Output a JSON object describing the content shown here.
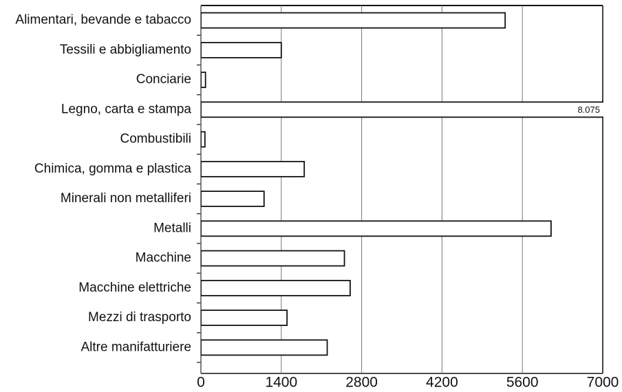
{
  "chart_data": {
    "type": "bar",
    "orientation": "horizontal",
    "categories": [
      "Alimentari, bevande e tabacco",
      "Tessili e abbigliamento",
      "Conciarie",
      "Legno, carta e stampa",
      "Combustibili",
      "Chimica, gomma e plastica",
      "Minerali non metalliferi",
      "Metalli",
      "Macchine",
      "Macchine elettriche",
      "Mezzi di trasporto",
      "Altre manifatturiere"
    ],
    "values": [
      5300,
      1400,
      80,
      8075,
      70,
      1800,
      1100,
      6100,
      2500,
      2600,
      1500,
      2200
    ],
    "value_labels": [
      null,
      null,
      null,
      "8.075",
      null,
      null,
      null,
      null,
      null,
      null,
      null,
      null
    ],
    "color": "#ffffff",
    "xlim": [
      0,
      7000
    ],
    "xticks": [
      0,
      1400,
      2800,
      4200,
      5600,
      7000
    ],
    "grid": true
  }
}
